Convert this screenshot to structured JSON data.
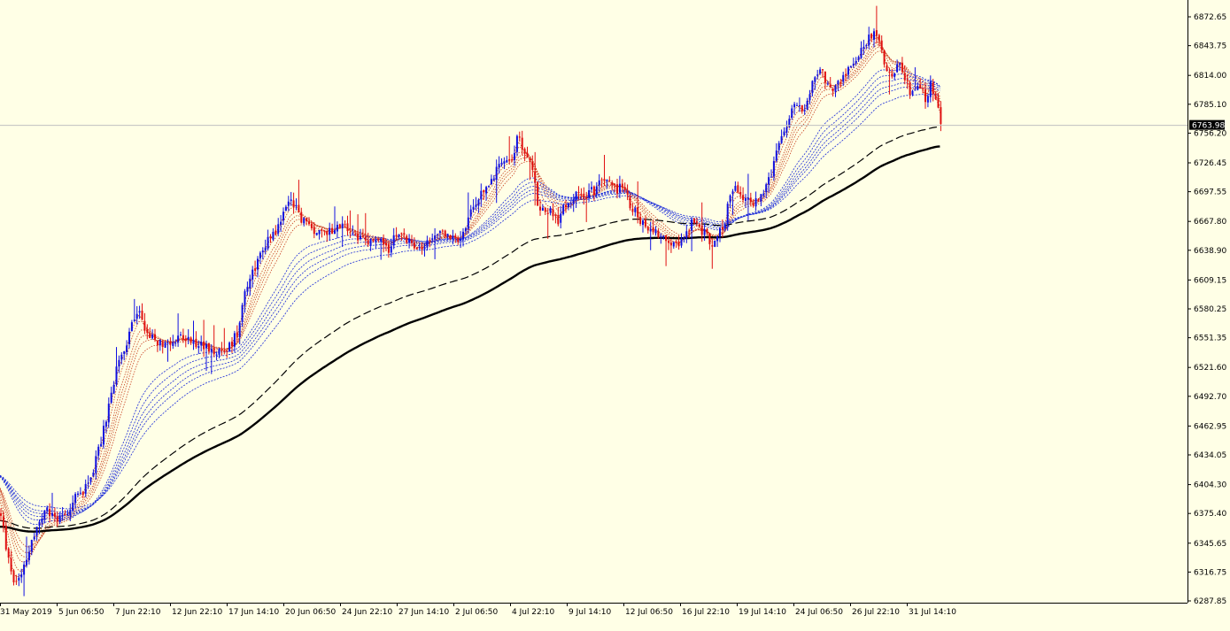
{
  "chart_data": {
    "type": "candlestick",
    "colors": {
      "background": "#ffffe6",
      "bull": "#1010e0",
      "bear": "#e01010",
      "ribbon_fast": "#c84020",
      "ribbon_slow": "#1a2ad8",
      "long_ma": "#000000",
      "price_line": "#c0c0c0",
      "price_label_bg": "#000000",
      "price_label_text": "#ffffff"
    },
    "y_ticks": [
      "6872.65",
      "6843.75",
      "6814.00",
      "6785.10",
      "6756.20",
      "6726.45",
      "6697.55",
      "6667.80",
      "6638.90",
      "6609.15",
      "6580.25",
      "6551.35",
      "6521.60",
      "6492.70",
      "6462.95",
      "6434.05",
      "6404.30",
      "6375.40",
      "6345.65",
      "6316.75",
      "6287.85"
    ],
    "ylim": [
      6287.85,
      6872.65
    ],
    "current_price": "6763.98",
    "x_ticks": [
      "31 May 2019",
      "5 Jun 06:50",
      "7 Jun 22:10",
      "12 Jun 22:10",
      "17 Jun 14:10",
      "20 Jun 06:50",
      "24 Jun 22:10",
      "27 Jun 14:10",
      "2 Jul 06:50",
      "4 Jul 22:10",
      "9 Jul 14:10",
      "12 Jul 06:50",
      "16 Jul 22:10",
      "19 Jul 14:10",
      "24 Jul 06:50",
      "26 Jul 22:10",
      "31 Jul 14:10"
    ],
    "trend_points": [
      [
        0,
        6375
      ],
      [
        8,
        6330
      ],
      [
        16,
        6305
      ],
      [
        24,
        6320
      ],
      [
        32,
        6340
      ],
      [
        40,
        6360
      ],
      [
        52,
        6378
      ],
      [
        60,
        6370
      ],
      [
        68,
        6372
      ],
      [
        76,
        6380
      ],
      [
        84,
        6390
      ],
      [
        92,
        6398
      ],
      [
        100,
        6410
      ],
      [
        108,
        6430
      ],
      [
        116,
        6460
      ],
      [
        124,
        6490
      ],
      [
        132,
        6525
      ],
      [
        140,
        6540
      ],
      [
        148,
        6565
      ],
      [
        156,
        6578
      ],
      [
        164,
        6558
      ],
      [
        172,
        6550
      ],
      [
        180,
        6545
      ],
      [
        190,
        6548
      ],
      [
        200,
        6552
      ],
      [
        210,
        6548
      ],
      [
        220,
        6545
      ],
      [
        230,
        6542
      ],
      [
        240,
        6540
      ],
      [
        250,
        6535
      ],
      [
        260,
        6545
      ],
      [
        268,
        6560
      ],
      [
        274,
        6595
      ],
      [
        280,
        6610
      ],
      [
        288,
        6625
      ],
      [
        296,
        6640
      ],
      [
        304,
        6655
      ],
      [
        312,
        6660
      ],
      [
        318,
        6672
      ],
      [
        324,
        6690
      ],
      [
        330,
        6688
      ],
      [
        336,
        6675
      ],
      [
        342,
        6668
      ],
      [
        350,
        6662
      ],
      [
        358,
        6655
      ],
      [
        366,
        6657
      ],
      [
        374,
        6660
      ],
      [
        382,
        6665
      ],
      [
        390,
        6660
      ],
      [
        398,
        6655
      ],
      [
        406,
        6650
      ],
      [
        414,
        6645
      ],
      [
        422,
        6650
      ],
      [
        430,
        6646
      ],
      [
        436,
        6638
      ],
      [
        444,
        6650
      ],
      [
        452,
        6655
      ],
      [
        460,
        6650
      ],
      [
        466,
        6642
      ],
      [
        474,
        6638
      ],
      [
        482,
        6645
      ],
      [
        490,
        6655
      ],
      [
        498,
        6660
      ],
      [
        506,
        6650
      ],
      [
        514,
        6648
      ],
      [
        522,
        6655
      ],
      [
        530,
        6675
      ],
      [
        538,
        6688
      ],
      [
        546,
        6700
      ],
      [
        554,
        6708
      ],
      [
        560,
        6722
      ],
      [
        566,
        6732
      ],
      [
        572,
        6728
      ],
      [
        578,
        6735
      ],
      [
        584,
        6752
      ],
      [
        590,
        6742
      ],
      [
        596,
        6730
      ],
      [
        602,
        6712
      ],
      [
        606,
        6685
      ],
      [
        612,
        6682
      ],
      [
        618,
        6675
      ],
      [
        624,
        6678
      ],
      [
        630,
        6668
      ],
      [
        636,
        6682
      ],
      [
        642,
        6688
      ],
      [
        648,
        6695
      ],
      [
        654,
        6692
      ],
      [
        660,
        6696
      ],
      [
        666,
        6698
      ],
      [
        672,
        6700
      ],
      [
        678,
        6710
      ],
      [
        684,
        6706
      ],
      [
        690,
        6705
      ],
      [
        696,
        6700
      ],
      [
        702,
        6703
      ],
      [
        708,
        6690
      ],
      [
        714,
        6680
      ],
      [
        720,
        6672
      ],
      [
        726,
        6665
      ],
      [
        732,
        6662
      ],
      [
        738,
        6658
      ],
      [
        744,
        6655
      ],
      [
        750,
        6650
      ],
      [
        756,
        6648
      ],
      [
        762,
        6652
      ],
      [
        768,
        6645
      ],
      [
        774,
        6658
      ],
      [
        780,
        6665
      ],
      [
        786,
        6662
      ],
      [
        792,
        6658
      ],
      [
        798,
        6652
      ],
      [
        804,
        6647
      ],
      [
        810,
        6655
      ],
      [
        816,
        6660
      ],
      [
        822,
        6690
      ],
      [
        828,
        6700
      ],
      [
        834,
        6702
      ],
      [
        840,
        6690
      ],
      [
        846,
        6685
      ],
      [
        852,
        6688
      ],
      [
        858,
        6695
      ],
      [
        864,
        6700
      ],
      [
        870,
        6715
      ],
      [
        876,
        6735
      ],
      [
        882,
        6752
      ],
      [
        888,
        6765
      ],
      [
        894,
        6780
      ],
      [
        900,
        6785
      ],
      [
        906,
        6782
      ],
      [
        912,
        6790
      ],
      [
        918,
        6812
      ],
      [
        924,
        6820
      ],
      [
        930,
        6812
      ],
      [
        936,
        6798
      ],
      [
        942,
        6802
      ],
      [
        948,
        6810
      ],
      [
        954,
        6815
      ],
      [
        960,
        6822
      ],
      [
        966,
        6832
      ],
      [
        972,
        6842
      ],
      [
        978,
        6850
      ],
      [
        984,
        6856
      ],
      [
        990,
        6852
      ],
      [
        996,
        6830
      ],
      [
        1002,
        6820
      ],
      [
        1008,
        6812
      ],
      [
        1014,
        6825
      ],
      [
        1020,
        6810
      ],
      [
        1026,
        6800
      ],
      [
        1032,
        6795
      ],
      [
        1038,
        6802
      ],
      [
        1044,
        6790
      ],
      [
        1050,
        6805
      ],
      [
        1054,
        6795
      ],
      [
        1058,
        6780
      ],
      [
        1062,
        6768
      ],
      [
        1064,
        6764
      ]
    ],
    "series": []
  }
}
